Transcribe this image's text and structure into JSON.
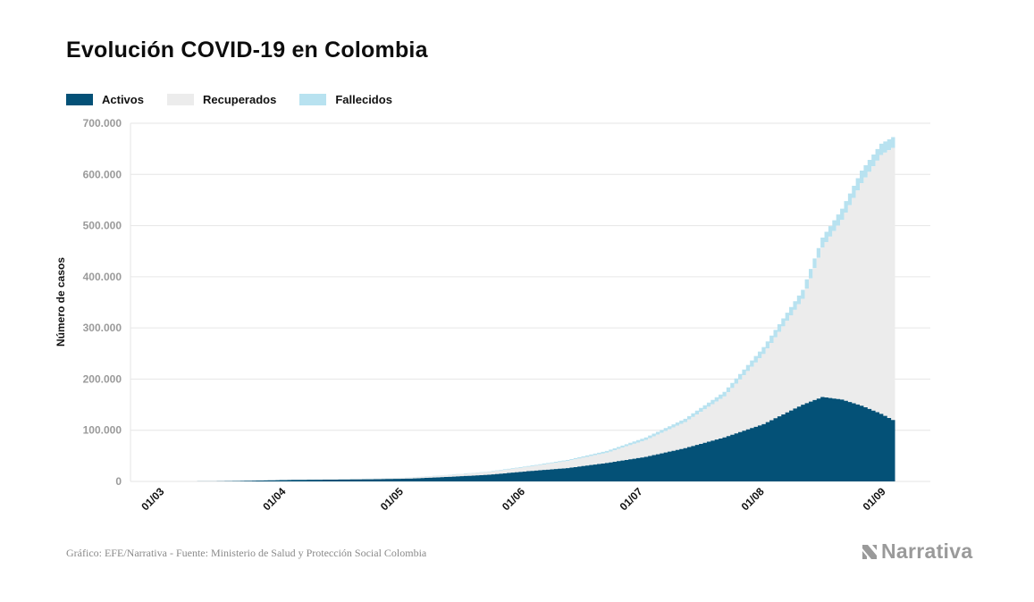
{
  "title": "Evolución COVID-19 en Colombia",
  "legend": {
    "activos": "Activos",
    "recuperados": "Recuperados",
    "fallecidos": "Fallecidos"
  },
  "colors": {
    "activos": "#045177",
    "recuperados": "#ececec",
    "fallecidos": "#b8e2f0",
    "grid": "#e6e6e6",
    "tick_text": "#9a9a9a"
  },
  "footer": "Gráfico: EFE/Narrativa - Fuente: Ministerio de Salud y Protección Social Colombia",
  "logo": {
    "text": "Narrativa",
    "icon": "narrativa-logo-icon"
  },
  "chart_data": {
    "type": "area",
    "stacked": true,
    "ylabel": "Número de casos",
    "xlabel": "",
    "ylim": [
      0,
      700000
    ],
    "yticks": [
      0,
      100000,
      200000,
      300000,
      400000,
      500000,
      600000,
      700000
    ],
    "ytick_labels": [
      "0",
      "100.000",
      "200.000",
      "300.000",
      "400.000",
      "500.000",
      "600.000",
      "700.000"
    ],
    "xlim_days": [
      -6,
      198
    ],
    "xticks": [
      {
        "label": "01/03",
        "day": 0
      },
      {
        "label": "01/04",
        "day": 31
      },
      {
        "label": "01/05",
        "day": 61
      },
      {
        "label": "01/06",
        "day": 92
      },
      {
        "label": "01/07",
        "day": 122
      },
      {
        "label": "01/08",
        "day": 153
      },
      {
        "label": "01/09",
        "day": 184
      }
    ],
    "grid": true,
    "legend_position": "top-left",
    "x": [
      "06/03",
      "16/03",
      "26/03",
      "05/04",
      "15/04",
      "25/04",
      "05/05",
      "15/05",
      "25/05",
      "04/06",
      "14/06",
      "24/06",
      "04/07",
      "14/07",
      "24/07",
      "03/08",
      "13/08",
      "18/08",
      "23/08",
      "28/08",
      "02/09",
      "05/09"
    ],
    "series": [
      {
        "name": "Activos",
        "values": [
          0,
          200,
          1500,
          3000,
          3500,
          4200,
          5500,
          9000,
          13000,
          20000,
          26000,
          36000,
          48000,
          65000,
          86000,
          112000,
          150000,
          165000,
          160000,
          148000,
          132000,
          120000
        ]
      },
      {
        "name": "Recuperados",
        "values": [
          0,
          10,
          70,
          200,
          700,
          1200,
          2200,
          3500,
          5500,
          8500,
          14000,
          20000,
          33000,
          51000,
          80000,
          137000,
          207000,
          292000,
          351000,
          435000,
          506000,
          532000
        ]
      },
      {
        "name": "Fallecidos",
        "values": [
          0,
          2,
          20,
          50,
          120,
          200,
          300,
          500,
          1000,
          1500,
          2000,
          3500,
          5000,
          6500,
          9000,
          13500,
          17500,
          19500,
          22000,
          24500,
          22000,
          21000
        ]
      }
    ]
  }
}
